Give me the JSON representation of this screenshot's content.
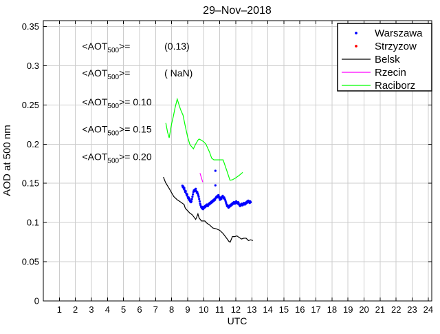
{
  "chart_data": {
    "type": "scatter+line",
    "title": "29–Nov–2018",
    "xlabel": "UTC",
    "ylabel": "AOD at 500 nm",
    "xlim": [
      0,
      24.22
    ],
    "ylim": [
      0,
      0.3575
    ],
    "grid": true,
    "grid_color": "#cccccc",
    "axis_color": "#000000",
    "background": "#ffffff",
    "xticks": [
      1,
      2,
      3,
      4,
      5,
      6,
      7,
      8,
      9,
      10,
      11,
      12,
      13,
      14,
      15,
      16,
      17,
      18,
      19,
      20,
      21,
      22,
      23,
      24
    ],
    "xtick_labels": [
      "1",
      "2",
      "3",
      "4",
      "5",
      "6",
      "7",
      "8",
      "9",
      "10",
      "11",
      "12",
      "13",
      "14",
      "15",
      "16",
      "17",
      "18",
      "19",
      "20",
      "21",
      "22",
      "23",
      "24"
    ],
    "yticks": [
      0,
      0.05,
      0.1,
      0.15,
      0.2,
      0.25,
      0.3,
      0.35
    ],
    "ytick_labels": [
      "0",
      "0.05",
      "0.1",
      "0.15",
      "0.2",
      "0.25",
      "0.3",
      "0.35"
    ],
    "legend_position": "top-right",
    "legend": [
      {
        "label": "Warszawa",
        "color": "#0000ff",
        "marker": "dot"
      },
      {
        "label": "Strzyzow",
        "color": "#ff0000",
        "marker": "dot"
      },
      {
        "label": "Belsk",
        "color": "#000000",
        "marker": "line"
      },
      {
        "label": "Rzecin",
        "color": "#ff00ff",
        "marker": "line"
      },
      {
        "label": "Raciborz",
        "color": "#00ff00",
        "marker": "line"
      }
    ],
    "annotations": [
      {
        "color": "#0000ff",
        "x": 2.42,
        "y": 0.3251,
        "label_parts": [
          {
            "t": "<AOT"
          },
          {
            "t": "500",
            "sub": true
          },
          {
            "t": ">="
          }
        ],
        "value": "(0.13)",
        "value_x": 7.55
      },
      {
        "color": "#ff0000",
        "x": 2.42,
        "y": 0.2906,
        "label_parts": [
          {
            "t": "<AOT"
          },
          {
            "t": "500",
            "sub": true
          },
          {
            "t": ">="
          }
        ],
        "value": "( NaN)",
        "value_x": 7.55
      },
      {
        "color": "#000000",
        "x": 2.42,
        "y": 0.2538,
        "label_parts": [
          {
            "t": "<AOT"
          },
          {
            "t": "500",
            "sub": true
          },
          {
            "t": ">="
          }
        ],
        "value": "0.10",
        "value_x": null
      },
      {
        "color": "#ff00ff",
        "x": 2.42,
        "y": 0.2192,
        "label_parts": [
          {
            "t": "<AOT"
          },
          {
            "t": "500",
            "sub": true
          },
          {
            "t": ">="
          }
        ],
        "value": "0.15",
        "value_x": null
      },
      {
        "color": "#00ff00",
        "x": 2.42,
        "y": 0.1842,
        "label_parts": [
          {
            "t": "<AOT"
          },
          {
            "t": "500",
            "sub": true
          },
          {
            "t": ">="
          }
        ],
        "value": "0.20",
        "value_x": null
      }
    ],
    "series": [
      {
        "name": "Warszawa",
        "type": "scatter",
        "color": "#0000ff",
        "points": [
          [
            8.67,
            0.147
          ],
          [
            8.7,
            0.145
          ],
          [
            8.73,
            0.146
          ],
          [
            8.76,
            0.143
          ],
          [
            8.79,
            0.144
          ],
          [
            8.82,
            0.141
          ],
          [
            8.85,
            0.139
          ],
          [
            8.88,
            0.14
          ],
          [
            8.91,
            0.137
          ],
          [
            8.94,
            0.135
          ],
          [
            8.97,
            0.136
          ],
          [
            9.0,
            0.133
          ],
          [
            9.03,
            0.131
          ],
          [
            9.06,
            0.132
          ],
          [
            9.09,
            0.129
          ],
          [
            9.12,
            0.13
          ],
          [
            9.15,
            0.127
          ],
          [
            9.18,
            0.128
          ],
          [
            9.21,
            0.126
          ],
          [
            9.24,
            0.127
          ],
          [
            9.27,
            0.13
          ],
          [
            9.3,
            0.133
          ],
          [
            9.33,
            0.136
          ],
          [
            9.36,
            0.139
          ],
          [
            9.39,
            0.141
          ],
          [
            9.42,
            0.14
          ],
          [
            9.45,
            0.142
          ],
          [
            9.48,
            0.141
          ],
          [
            9.51,
            0.143
          ],
          [
            9.54,
            0.14
          ],
          [
            9.57,
            0.138
          ],
          [
            9.6,
            0.139
          ],
          [
            9.63,
            0.137
          ],
          [
            9.66,
            0.135
          ],
          [
            9.69,
            0.133
          ],
          [
            9.72,
            0.13
          ],
          [
            9.75,
            0.127
          ],
          [
            9.78,
            0.124
          ],
          [
            9.81,
            0.122
          ],
          [
            9.84,
            0.12
          ],
          [
            9.87,
            0.119
          ],
          [
            9.9,
            0.118
          ],
          [
            9.93,
            0.12
          ],
          [
            9.96,
            0.117
          ],
          [
            9.99,
            0.118
          ],
          [
            10.02,
            0.12
          ],
          [
            10.05,
            0.119
          ],
          [
            10.08,
            0.121
          ],
          [
            10.11,
            0.12
          ],
          [
            10.14,
            0.122
          ],
          [
            10.17,
            0.121
          ],
          [
            10.2,
            0.123
          ],
          [
            10.23,
            0.122
          ],
          [
            10.26,
            0.121
          ],
          [
            10.29,
            0.123
          ],
          [
            10.32,
            0.124
          ],
          [
            10.35,
            0.123
          ],
          [
            10.38,
            0.125
          ],
          [
            10.41,
            0.124
          ],
          [
            10.44,
            0.126
          ],
          [
            10.47,
            0.125
          ],
          [
            10.5,
            0.127
          ],
          [
            10.53,
            0.126
          ],
          [
            10.56,
            0.128
          ],
          [
            10.59,
            0.127
          ],
          [
            10.62,
            0.129
          ],
          [
            10.65,
            0.128
          ],
          [
            10.68,
            0.13
          ],
          [
            10.71,
            0.129
          ],
          [
            10.74,
            0.131
          ],
          [
            10.77,
            0.132
          ],
          [
            10.8,
            0.133
          ],
          [
            10.83,
            0.132
          ],
          [
            10.86,
            0.134
          ],
          [
            10.89,
            0.133
          ],
          [
            10.92,
            0.135
          ],
          [
            10.95,
            0.133
          ],
          [
            10.98,
            0.131
          ],
          [
            11.01,
            0.129
          ],
          [
            11.04,
            0.131
          ],
          [
            11.07,
            0.132
          ],
          [
            11.1,
            0.13
          ],
          [
            11.13,
            0.132
          ],
          [
            11.16,
            0.133
          ],
          [
            11.19,
            0.134
          ],
          [
            11.22,
            0.132
          ],
          [
            11.25,
            0.131
          ],
          [
            11.28,
            0.132
          ],
          [
            11.31,
            0.13
          ],
          [
            11.34,
            0.129
          ],
          [
            11.37,
            0.127
          ],
          [
            11.4,
            0.125
          ],
          [
            11.43,
            0.123
          ],
          [
            11.46,
            0.121
          ],
          [
            11.49,
            0.122
          ],
          [
            11.52,
            0.12
          ],
          [
            11.55,
            0.119
          ],
          [
            11.58,
            0.121
          ],
          [
            11.61,
            0.12
          ],
          [
            11.64,
            0.122
          ],
          [
            11.67,
            0.121
          ],
          [
            11.7,
            0.123
          ],
          [
            11.73,
            0.122
          ],
          [
            11.76,
            0.124
          ],
          [
            11.79,
            0.123
          ],
          [
            11.82,
            0.125
          ],
          [
            11.85,
            0.124
          ],
          [
            11.88,
            0.126
          ],
          [
            11.91,
            0.125
          ],
          [
            11.94,
            0.124
          ],
          [
            11.97,
            0.126
          ],
          [
            12.0,
            0.125
          ],
          [
            12.03,
            0.127
          ],
          [
            12.06,
            0.126
          ],
          [
            12.09,
            0.125
          ],
          [
            12.12,
            0.124
          ],
          [
            12.15,
            0.126
          ],
          [
            12.18,
            0.125
          ],
          [
            12.21,
            0.123
          ],
          [
            12.24,
            0.122
          ],
          [
            12.27,
            0.121
          ],
          [
            12.3,
            0.123
          ],
          [
            12.33,
            0.122
          ],
          [
            12.36,
            0.124
          ],
          [
            12.39,
            0.123
          ],
          [
            12.42,
            0.122
          ],
          [
            12.45,
            0.124
          ],
          [
            12.48,
            0.123
          ],
          [
            12.51,
            0.125
          ],
          [
            12.54,
            0.124
          ],
          [
            12.57,
            0.123
          ],
          [
            12.6,
            0.125
          ],
          [
            12.63,
            0.124
          ],
          [
            12.66,
            0.126
          ],
          [
            12.69,
            0.125
          ],
          [
            12.72,
            0.127
          ],
          [
            12.75,
            0.126
          ],
          [
            12.78,
            0.128
          ],
          [
            12.81,
            0.126
          ],
          [
            12.84,
            0.127
          ],
          [
            12.87,
            0.125
          ],
          [
            12.9,
            0.127
          ],
          [
            12.93,
            0.126
          ],
          [
            10.73,
            0.166
          ],
          [
            10.73,
            0.1475
          ]
        ]
      },
      {
        "name": "Strzyzow",
        "type": "scatter",
        "color": "#ff0000",
        "points": []
      },
      {
        "name": "Belsk",
        "type": "line",
        "color": "#000000",
        "points": [
          [
            7.49,
            0.158
          ],
          [
            7.62,
            0.151
          ],
          [
            7.71,
            0.148
          ],
          [
            7.86,
            0.143
          ],
          [
            8.0,
            0.138
          ],
          [
            8.14,
            0.133
          ],
          [
            8.25,
            0.131
          ],
          [
            8.35,
            0.129
          ],
          [
            8.5,
            0.127
          ],
          [
            8.64,
            0.125
          ],
          [
            8.78,
            0.123
          ],
          [
            8.82,
            0.12
          ],
          [
            8.86,
            0.118
          ],
          [
            9.0,
            0.115
          ],
          [
            9.14,
            0.112
          ],
          [
            9.28,
            0.11
          ],
          [
            9.43,
            0.106
          ],
          [
            9.5,
            0.104
          ],
          [
            9.57,
            0.107
          ],
          [
            9.64,
            0.111
          ],
          [
            9.71,
            0.106
          ],
          [
            9.86,
            0.102
          ],
          [
            10.07,
            0.102
          ],
          [
            10.21,
            0.099
          ],
          [
            10.36,
            0.097
          ],
          [
            10.57,
            0.093
          ],
          [
            10.79,
            0.092
          ],
          [
            11.0,
            0.09
          ],
          [
            11.21,
            0.086
          ],
          [
            11.43,
            0.08
          ],
          [
            11.57,
            0.076
          ],
          [
            11.65,
            0.075
          ],
          [
            11.79,
            0.082
          ],
          [
            11.93,
            0.082
          ],
          [
            12.07,
            0.083
          ],
          [
            12.21,
            0.081
          ],
          [
            12.36,
            0.079
          ],
          [
            12.5,
            0.08
          ],
          [
            12.64,
            0.08
          ],
          [
            12.79,
            0.077
          ],
          [
            12.93,
            0.078
          ],
          [
            13.07,
            0.077
          ]
        ]
      },
      {
        "name": "Rzecin",
        "type": "line",
        "color": "#ff00ff",
        "points": [
          [
            9.77,
            0.163
          ],
          [
            9.94,
            0.1515
          ]
        ]
      },
      {
        "name": "Raciborz",
        "type": "line",
        "color": "#00ff00",
        "points": [
          [
            7.64,
            0.227
          ],
          [
            7.75,
            0.215
          ],
          [
            7.85,
            0.208
          ],
          [
            8.0,
            0.226
          ],
          [
            8.1,
            0.235
          ],
          [
            8.22,
            0.247
          ],
          [
            8.35,
            0.2575
          ],
          [
            8.48,
            0.249
          ],
          [
            8.56,
            0.244
          ],
          [
            8.71,
            0.237
          ],
          [
            8.86,
            0.222
          ],
          [
            9.0,
            0.209
          ],
          [
            9.14,
            0.1995
          ],
          [
            9.28,
            0.196
          ],
          [
            9.36,
            0.194
          ],
          [
            9.5,
            0.2
          ],
          [
            9.64,
            0.205
          ],
          [
            9.71,
            0.2065
          ],
          [
            9.86,
            0.205
          ],
          [
            10.0,
            0.203
          ],
          [
            10.14,
            0.2
          ],
          [
            10.36,
            0.19
          ],
          [
            10.5,
            0.182
          ],
          [
            10.64,
            0.18
          ],
          [
            10.93,
            0.18
          ],
          [
            11.21,
            0.18
          ],
          [
            11.43,
            0.167
          ],
          [
            11.64,
            0.154
          ],
          [
            11.79,
            0.1545
          ],
          [
            12.0,
            0.157
          ],
          [
            12.21,
            0.16
          ],
          [
            12.43,
            0.164
          ]
        ]
      }
    ]
  }
}
